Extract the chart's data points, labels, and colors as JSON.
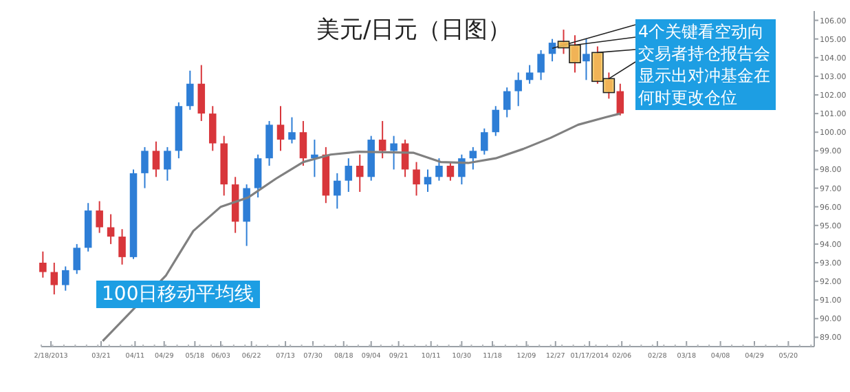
{
  "chart_data": {
    "type": "candlestick",
    "title": "美元/日元（日图）",
    "annotations": [
      {
        "text": "4个关键看空动向交易者持仓报告会显示出对冲基金在何时更改仓位",
        "x": "2013-12-25",
        "y": 104.5
      }
    ],
    "xlim": [
      "2013-02-12",
      "2014-06-05"
    ],
    "xticks": [
      {
        "value": "2013-02-18",
        "label": "2/18/2013"
      },
      {
        "value": "2013-03-21",
        "label": "03/21"
      },
      {
        "value": "2013-04-11",
        "label": "04/11"
      },
      {
        "value": "2013-04-29",
        "label": "04/29"
      },
      {
        "value": "2013-05-18",
        "label": "05/18"
      },
      {
        "value": "2013-06-03",
        "label": "06/03"
      },
      {
        "value": "2013-06-22",
        "label": "06/22"
      },
      {
        "value": "2013-07-13",
        "label": "07/13"
      },
      {
        "value": "2013-07-30",
        "label": "07/30"
      },
      {
        "value": "2013-08-18",
        "label": "08/18"
      },
      {
        "value": "2013-09-04",
        "label": "09/04"
      },
      {
        "value": "2013-09-21",
        "label": "09/21"
      },
      {
        "value": "2013-10-11",
        "label": "10/11"
      },
      {
        "value": "2013-10-30",
        "label": "10/30"
      },
      {
        "value": "2013-11-18",
        "label": "11/18"
      },
      {
        "value": "2013-12-09",
        "label": "12/09"
      },
      {
        "value": "2013-12-27",
        "label": "12/27"
      },
      {
        "value": "2014-01-17",
        "label": "01/17/2014"
      },
      {
        "value": "2014-02-06",
        "label": "02/06"
      },
      {
        "value": "2014-02-28",
        "label": "02/28"
      },
      {
        "value": "2014-03-18",
        "label": "03/18"
      },
      {
        "value": "2014-04-08",
        "label": "04/08"
      },
      {
        "value": "2014-04-29",
        "label": "04/29"
      },
      {
        "value": "2014-05-20",
        "label": "05/20"
      }
    ],
    "ylim": [
      88.5,
      106.5
    ],
    "yticks": [
      {
        "value": 89,
        "label": "89.00"
      },
      {
        "value": 90,
        "label": "90.00"
      },
      {
        "value": 91,
        "label": "91.00"
      },
      {
        "value": 92,
        "label": "92.00"
      },
      {
        "value": 93,
        "label": "93.00"
      },
      {
        "value": 94,
        "label": "94.00"
      },
      {
        "value": 95,
        "label": "95.00"
      },
      {
        "value": 96,
        "label": "96.00"
      },
      {
        "value": 97,
        "label": "97.00"
      },
      {
        "value": 98,
        "label": "98.00"
      },
      {
        "value": 99,
        "label": "99.00"
      },
      {
        "value": 100,
        "label": "100.00"
      },
      {
        "value": 101,
        "label": "101.00"
      },
      {
        "value": 102,
        "label": "102.00"
      },
      {
        "value": 103,
        "label": "103.00"
      },
      {
        "value": 104,
        "label": "104.00"
      },
      {
        "value": 105,
        "label": "105.00"
      },
      {
        "value": 106,
        "label": "106.00"
      }
    ],
    "grid": false,
    "legend": false,
    "series": [
      {
        "x": [
          "2013-02-13",
          "2013-02-20",
          "2013-02-27",
          "2013-03-06",
          "2013-03-13",
          "2013-03-20",
          "2013-03-27",
          "2013-04-03",
          "2013-04-10",
          "2013-04-17",
          "2013-04-24",
          "2013-05-01",
          "2013-05-08",
          "2013-05-15",
          "2013-05-22",
          "2013-05-29",
          "2013-06-05",
          "2013-06-12",
          "2013-06-19",
          "2013-06-26",
          "2013-07-03",
          "2013-07-10",
          "2013-07-17",
          "2013-07-24",
          "2013-07-31",
          "2013-08-07",
          "2013-08-14",
          "2013-08-21",
          "2013-08-28",
          "2013-09-04",
          "2013-09-11",
          "2013-09-18",
          "2013-09-25",
          "2013-10-02",
          "2013-10-09",
          "2013-10-16",
          "2013-10-23",
          "2013-10-30",
          "2013-11-06",
          "2013-11-13",
          "2013-11-20",
          "2013-11-27",
          "2013-12-04",
          "2013-12-11",
          "2013-12-18",
          "2013-12-25",
          "2014-01-01",
          "2014-01-08",
          "2014-01-15",
          "2014-01-22",
          "2014-01-29",
          "2014-02-05"
        ],
        "ohlc": [
          [
            93.0,
            93.6,
            92.2,
            92.5
          ],
          [
            92.5,
            93.0,
            91.3,
            91.8
          ],
          [
            91.8,
            92.8,
            91.5,
            92.6
          ],
          [
            92.6,
            94.0,
            92.4,
            93.8
          ],
          [
            93.8,
            96.2,
            93.6,
            95.8
          ],
          [
            95.8,
            96.3,
            94.6,
            94.9
          ],
          [
            94.9,
            95.6,
            94.0,
            94.4
          ],
          [
            94.4,
            94.8,
            92.9,
            93.3
          ],
          [
            93.3,
            98.0,
            93.2,
            97.8
          ],
          [
            97.8,
            99.2,
            97.0,
            99.0
          ],
          [
            99.0,
            99.5,
            97.6,
            98.0
          ],
          [
            98.0,
            99.2,
            97.4,
            99.0
          ],
          [
            99.0,
            101.6,
            98.6,
            101.4
          ],
          [
            101.4,
            103.3,
            101.2,
            102.6
          ],
          [
            102.6,
            103.6,
            100.6,
            101.0
          ],
          [
            101.0,
            101.4,
            99.0,
            99.4
          ],
          [
            99.4,
            99.8,
            96.6,
            97.2
          ],
          [
            97.2,
            97.6,
            94.6,
            95.2
          ],
          [
            95.2,
            97.2,
            93.9,
            97.0
          ],
          [
            97.0,
            98.8,
            96.5,
            98.6
          ],
          [
            98.6,
            100.6,
            98.2,
            100.4
          ],
          [
            100.4,
            101.4,
            99.0,
            99.6
          ],
          [
            99.6,
            100.8,
            99.4,
            100.0
          ],
          [
            100.0,
            100.6,
            98.2,
            98.6
          ],
          [
            98.6,
            99.6,
            97.6,
            98.8
          ],
          [
            98.8,
            99.2,
            96.2,
            96.6
          ],
          [
            96.6,
            97.8,
            95.9,
            97.4
          ],
          [
            97.4,
            98.6,
            96.8,
            98.2
          ],
          [
            98.2,
            98.8,
            96.8,
            97.6
          ],
          [
            97.6,
            99.8,
            97.4,
            99.6
          ],
          [
            99.6,
            100.6,
            98.6,
            99.0
          ],
          [
            99.0,
            99.8,
            98.0,
            99.4
          ],
          [
            99.4,
            99.6,
            97.6,
            98.0
          ],
          [
            98.0,
            98.4,
            96.6,
            97.2
          ],
          [
            97.2,
            98.0,
            96.8,
            97.6
          ],
          [
            97.6,
            98.6,
            97.4,
            98.2
          ],
          [
            98.2,
            98.4,
            97.4,
            97.6
          ],
          [
            97.6,
            98.8,
            97.2,
            98.6
          ],
          [
            98.6,
            99.2,
            98.0,
            99.0
          ],
          [
            99.0,
            100.2,
            98.8,
            100.0
          ],
          [
            100.0,
            101.4,
            99.8,
            101.2
          ],
          [
            101.2,
            102.4,
            100.8,
            102.2
          ],
          [
            102.2,
            103.2,
            101.4,
            102.8
          ],
          [
            102.8,
            103.6,
            102.6,
            103.2
          ],
          [
            103.2,
            104.4,
            102.8,
            104.2
          ],
          [
            104.2,
            105.0,
            103.8,
            104.8
          ],
          [
            104.8,
            105.5,
            104.2,
            104.6
          ],
          [
            104.6,
            105.2,
            103.2,
            103.8
          ],
          [
            103.8,
            105.0,
            102.8,
            104.2
          ],
          [
            104.2,
            104.6,
            102.6,
            102.8
          ],
          [
            102.8,
            103.2,
            101.8,
            102.2
          ],
          [
            102.2,
            102.6,
            100.9,
            101.0
          ]
        ],
        "colors": [
          "#d8363b",
          "#d8363b",
          "#2e7ed6",
          "#2e7ed6",
          "#2e7ed6",
          "#d8363b",
          "#d8363b",
          "#d8363b",
          "#2e7ed6",
          "#2e7ed6",
          "#d8363b",
          "#2e7ed6",
          "#2e7ed6",
          "#2e7ed6",
          "#d8363b",
          "#d8363b",
          "#d8363b",
          "#d8363b",
          "#2e7ed6",
          "#2e7ed6",
          "#2e7ed6",
          "#d8363b",
          "#2e7ed6",
          "#d8363b",
          "#2e7ed6",
          "#d8363b",
          "#2e7ed6",
          "#2e7ed6",
          "#d8363b",
          "#2e7ed6",
          "#d8363b",
          "#2e7ed6",
          "#d8363b",
          "#d8363b",
          "#2e7ed6",
          "#2e7ed6",
          "#d8363b",
          "#2e7ed6",
          "#2e7ed6",
          "#2e7ed6",
          "#2e7ed6",
          "#2e7ed6",
          "#2e7ed6",
          "#2e7ed6",
          "#2e7ed6",
          "#2e7ed6",
          "#d8363b",
          "#d8363b",
          "#2e7ed6",
          "#d8363b",
          "#d8363b",
          "#d8363b"
        ]
      },
      {
        "type": "line",
        "name": "100日移动平均线",
        "color": "#808080",
        "x": [
          "2013-03-22",
          "2013-04-30",
          "2013-05-17",
          "2013-06-03",
          "2013-06-20",
          "2013-07-07",
          "2013-07-24",
          "2013-08-10",
          "2013-08-27",
          "2013-09-30",
          "2013-10-17",
          "2013-11-03",
          "2013-11-20",
          "2013-12-07",
          "2013-12-24",
          "2014-01-10",
          "2014-01-27",
          "2014-02-05"
        ],
        "values": [
          88.8,
          92.3,
          94.7,
          96.0,
          96.5,
          97.5,
          98.4,
          98.8,
          98.95,
          98.9,
          98.4,
          98.35,
          98.6,
          99.1,
          99.7,
          100.4,
          100.8,
          101.0
        ]
      }
    ]
  }
}
